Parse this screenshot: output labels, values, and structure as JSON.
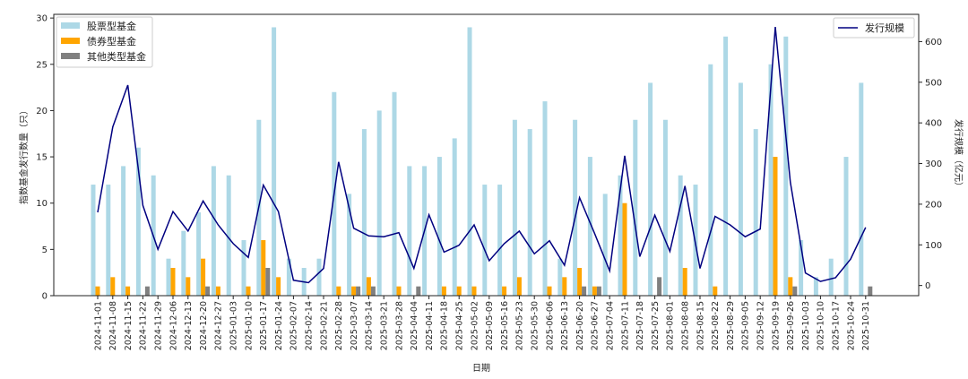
{
  "chart_data": {
    "type": "bar",
    "title": "",
    "xlabel": "日期",
    "ylabel": "指数基金发行数量（只）",
    "y2label": "发行规模（亿元）",
    "ylim": [
      0,
      30.4
    ],
    "y2lim": [
      -25,
      667
    ],
    "yticks": [
      0,
      5,
      10,
      15,
      20,
      25,
      30
    ],
    "y2ticks": [
      0,
      100,
      200,
      300,
      400,
      500,
      600
    ],
    "grid": false,
    "legend_bars": "top-left",
    "legend_line": "top-right",
    "categories": [
      "2024-11-01",
      "2024-11-08",
      "2024-11-15",
      "2024-11-22",
      "2024-11-29",
      "2024-12-06",
      "2024-12-13",
      "2024-12-20",
      "2024-12-27",
      "2025-01-03",
      "2025-01-10",
      "2025-01-17",
      "2025-01-24",
      "2025-02-07",
      "2025-02-14",
      "2025-02-21",
      "2025-02-28",
      "2025-03-07",
      "2025-03-14",
      "2025-03-21",
      "2025-03-28",
      "2025-04-04",
      "2025-04-11",
      "2025-04-18",
      "2025-04-25",
      "2025-05-02",
      "2025-05-09",
      "2025-05-16",
      "2025-05-23",
      "2025-05-30",
      "2025-06-06",
      "2025-06-13",
      "2025-06-20",
      "2025-06-27",
      "2025-07-04",
      "2025-07-11",
      "2025-07-18",
      "2025-07-25",
      "2025-08-01",
      "2025-08-08",
      "2025-08-15",
      "2025-08-22",
      "2025-08-29",
      "2025-09-05",
      "2025-09-12",
      "2025-09-19",
      "2025-09-26",
      "2025-10-03",
      "2025-10-10",
      "2025-10-17",
      "2025-10-24",
      "2025-10-31"
    ],
    "series": [
      {
        "name": "股票型基金",
        "type": "bar",
        "axis": "left",
        "color": "#add8e6",
        "values": [
          12,
          12,
          14,
          16,
          13,
          4,
          7,
          9,
          14,
          13,
          6,
          19,
          29,
          4,
          3,
          4,
          22,
          11,
          18,
          20,
          22,
          14,
          14,
          15,
          17,
          29,
          12,
          12,
          19,
          18,
          21,
          4,
          19,
          15,
          11,
          13,
          19,
          23,
          19,
          13,
          12,
          25,
          28,
          23,
          18,
          25,
          28,
          6,
          2,
          4,
          15,
          23
        ]
      },
      {
        "name": "债券型基金",
        "type": "bar",
        "axis": "left",
        "color": "#ffa500",
        "values": [
          1,
          2,
          1,
          0,
          0,
          3,
          2,
          4,
          1,
          0,
          1,
          6,
          2,
          0,
          0,
          0,
          1,
          1,
          2,
          0,
          1,
          0,
          0,
          1,
          1,
          1,
          0,
          1,
          2,
          0,
          1,
          2,
          3,
          1,
          0,
          10,
          0,
          0,
          0,
          3,
          0,
          1,
          0,
          0,
          0,
          15,
          2,
          0,
          0,
          0,
          0,
          0
        ]
      },
      {
        "name": "其他类型基金",
        "type": "bar",
        "axis": "left",
        "color": "#808080",
        "values": [
          0,
          0,
          0,
          1,
          0,
          0,
          0,
          1,
          0,
          0,
          0,
          3,
          0,
          0,
          0,
          0,
          0,
          1,
          1,
          0,
          0,
          1,
          0,
          0,
          0,
          0,
          0,
          0,
          0,
          0,
          0,
          0,
          1,
          1,
          0,
          0,
          0,
          2,
          0,
          0,
          0,
          0,
          0,
          0,
          0,
          0,
          1,
          0,
          0,
          0,
          0,
          1
        ]
      },
      {
        "name": "发行规模",
        "type": "line",
        "axis": "right",
        "color": "#000080",
        "values": [
          180,
          390,
          493,
          197,
          89,
          182,
          134,
          208,
          149,
          103,
          69,
          247,
          182,
          13,
          7,
          42,
          304,
          141,
          122,
          120,
          130,
          42,
          174,
          82,
          99,
          149,
          61,
          103,
          134,
          78,
          110,
          50,
          216,
          128,
          36,
          319,
          71,
          173,
          84,
          245,
          42,
          170,
          149,
          120,
          139,
          636,
          254,
          31,
          10,
          19,
          65,
          143
        ]
      }
    ]
  }
}
